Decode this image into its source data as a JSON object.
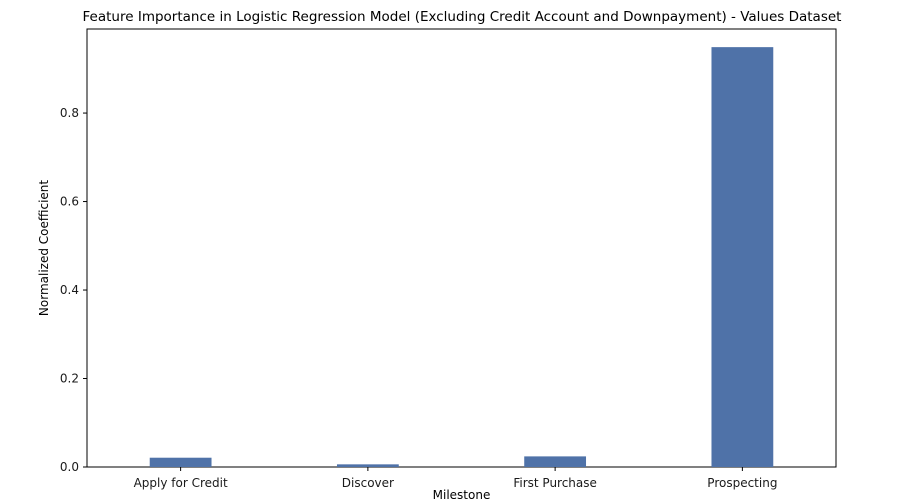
{
  "chart_data": {
    "type": "bar",
    "title": "Feature Importance in Logistic Regression Model (Excluding Credit Account and Downpayment) - Values Dataset",
    "xlabel": "Milestone",
    "ylabel": "Normalized Coefficient",
    "categories": [
      "Apply for Credit",
      "Discover",
      "First Purchase",
      "Prospecting"
    ],
    "values": [
      0.021,
      0.006,
      0.024,
      0.949
    ],
    "ylim": [
      0,
      0.99
    ],
    "yticks": [
      "0.0",
      "0.2",
      "0.4",
      "0.6",
      "0.8"
    ],
    "bar_color": "#4f72a8",
    "grid": false,
    "legend": "none"
  }
}
